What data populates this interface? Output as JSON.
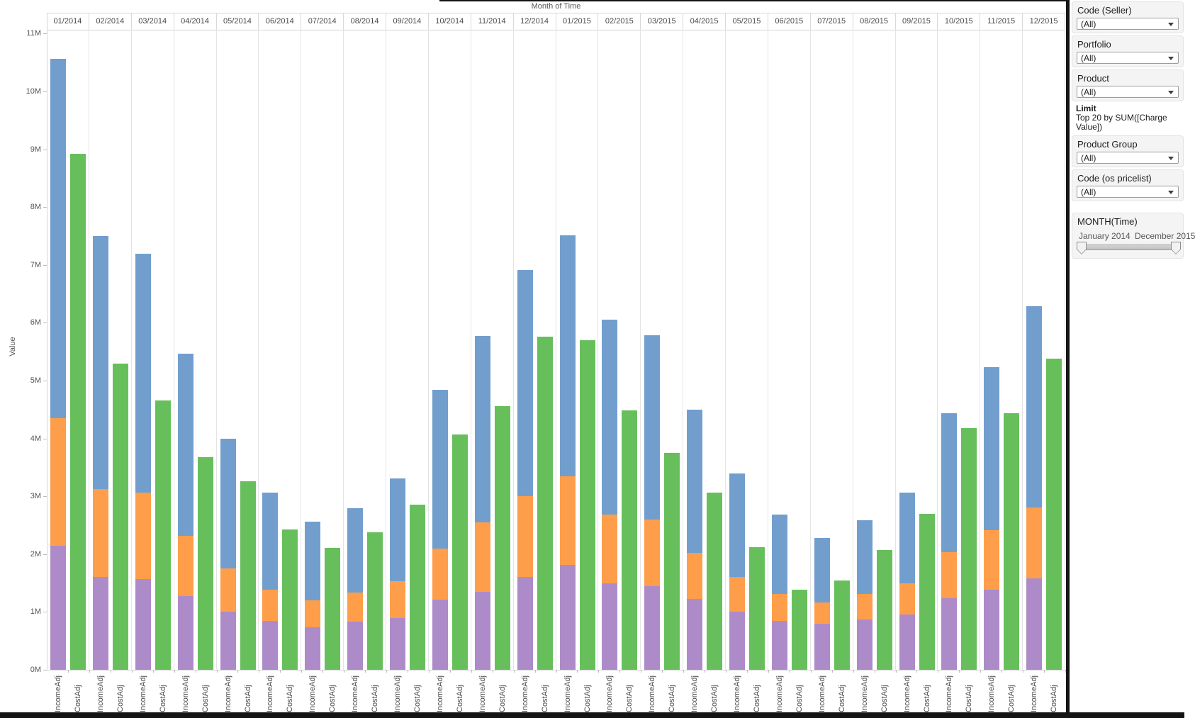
{
  "chart_data": {
    "type": "bar",
    "stacked": true,
    "title": "Month of Time",
    "xlabel": "Month of Time",
    "ylabel": "Value",
    "ylim": [
      0,
      11
    ],
    "y_tick_labels": [
      "0M",
      "1M",
      "2M",
      "3M",
      "4M",
      "5M",
      "6M",
      "7M",
      "8M",
      "9M",
      "10M",
      "11M"
    ],
    "grid": "vertical-column-separators",
    "legend": "none",
    "bar_group_labels": [
      "IncomeAdj",
      "CostAdj"
    ],
    "categories": [
      "01/2014",
      "02/2014",
      "03/2014",
      "04/2014",
      "05/2014",
      "06/2014",
      "07/2014",
      "08/2014",
      "09/2014",
      "10/2014",
      "11/2014",
      "12/2014",
      "01/2015",
      "02/2015",
      "03/2015",
      "04/2015",
      "05/2015",
      "06/2015",
      "07/2015",
      "08/2015",
      "09/2015",
      "10/2015",
      "11/2015",
      "12/2015"
    ],
    "units": "millions",
    "series": [
      {
        "name": "IncomeAdj - purple segment (bottom)",
        "color": "#AD8BC9",
        "values": [
          2.14,
          1.6,
          1.57,
          1.28,
          1.01,
          0.84,
          0.74,
          0.83,
          0.9,
          1.21,
          1.35,
          1.6,
          1.81,
          1.49,
          1.45,
          1.22,
          1.0,
          0.85,
          0.8,
          0.87,
          0.96,
          1.24,
          1.38,
          1.58
        ]
      },
      {
        "name": "IncomeAdj - orange segment (middle)",
        "color": "#FF9E4A",
        "values": [
          2.21,
          1.53,
          1.49,
          1.04,
          0.74,
          0.54,
          0.46,
          0.5,
          0.63,
          0.89,
          1.2,
          1.4,
          1.54,
          1.2,
          1.15,
          0.8,
          0.6,
          0.46,
          0.37,
          0.44,
          0.54,
          0.79,
          1.03,
          1.23
        ]
      },
      {
        "name": "IncomeAdj - blue segment (top)",
        "color": "#729ECE",
        "values": [
          6.22,
          4.37,
          4.14,
          3.15,
          2.25,
          1.69,
          1.36,
          1.46,
          1.78,
          2.74,
          3.22,
          3.91,
          4.16,
          3.37,
          3.18,
          2.48,
          1.8,
          1.37,
          1.11,
          1.28,
          1.57,
          2.41,
          2.82,
          3.48
        ]
      },
      {
        "name": "CostAdj - green bar",
        "color": "#67BF5C",
        "values": [
          8.92,
          5.3,
          4.66,
          3.68,
          3.26,
          2.43,
          2.11,
          2.38,
          2.86,
          4.07,
          4.56,
          5.76,
          5.7,
          4.49,
          3.75,
          3.06,
          2.12,
          1.39,
          1.54,
          2.07,
          2.7,
          4.18,
          4.44,
          5.38
        ]
      }
    ],
    "income_totals": [
      10.57,
      7.5,
      7.2,
      5.47,
      4.0,
      3.07,
      2.56,
      2.79,
      3.31,
      4.84,
      5.77,
      6.91,
      7.51,
      6.06,
      5.78,
      4.5,
      3.4,
      2.68,
      2.28,
      2.59,
      3.07,
      4.44,
      5.23,
      6.29
    ]
  },
  "filter_panel": {
    "filters": [
      {
        "label": "Code (Seller)",
        "value": "(All)"
      },
      {
        "label": "Portfolio",
        "value": "(All)"
      },
      {
        "label": "Product",
        "value": "(All)"
      },
      {
        "label": "Product Group",
        "value": "(All)"
      },
      {
        "label": "Code (os pricelist)",
        "value": "(All)"
      }
    ],
    "limit": {
      "label": "Limit",
      "text": "Top 20 by SUM([Charge Value])"
    },
    "month_slider": {
      "label": "MONTH(Time)",
      "start_label": "January 2014",
      "end_label": "December 2015"
    }
  }
}
